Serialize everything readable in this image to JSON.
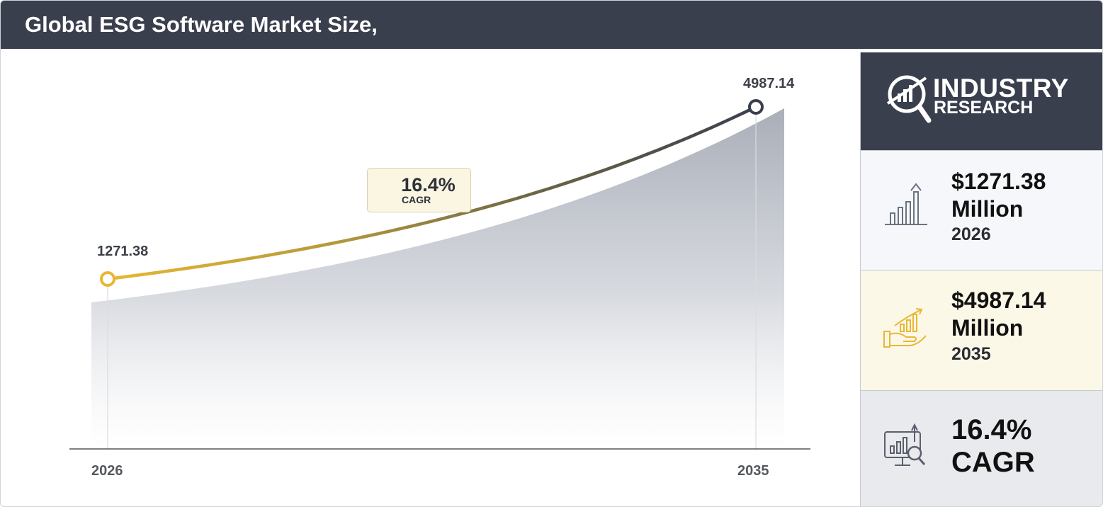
{
  "header": {
    "title": "Global ESG Software Market Size,"
  },
  "chart_data": {
    "type": "area",
    "x": [
      "2026",
      "2035"
    ],
    "values": [
      1271.38,
      4987.14
    ],
    "value_labels": [
      "1271.38",
      "4987.14"
    ],
    "start_year": 2026,
    "end_year": 2035,
    "cagr": "16.4%",
    "cagr_label": "CAGR",
    "grid": false,
    "colors": {
      "start": "#e8b733",
      "end": "#3a3f4e",
      "area": "#b9bec7"
    }
  },
  "sidebar": {
    "logo": {
      "line1": "INDUSTRY",
      "line2": "RESEARCH"
    },
    "cards": [
      {
        "value": "$1271.38",
        "unit": "Million",
        "year": "2026",
        "icon": "bar-chart-growth-icon"
      },
      {
        "value": "$4987.14",
        "unit": "Million",
        "year": "2035",
        "icon": "hand-growth-chart-icon"
      },
      {
        "value": "16.4%",
        "unit": "CAGR",
        "icon": "monitor-analytics-icon"
      }
    ]
  }
}
